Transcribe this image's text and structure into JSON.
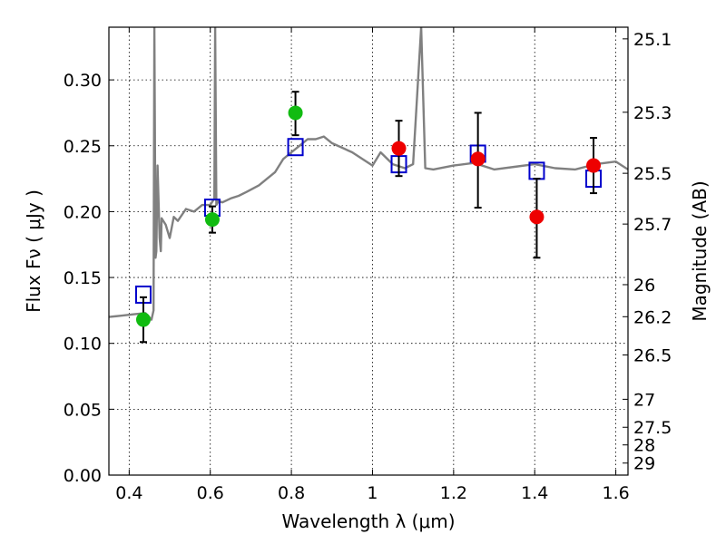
{
  "chart_data": {
    "type": "scatter",
    "title": "",
    "xlabel": "Wavelength  λ (μm)",
    "ylabel": "Flux  Fν  ( μJy )",
    "y2label": "Magnitude (AB)",
    "xlim": [
      0.35,
      1.63
    ],
    "ylim": [
      0.0,
      0.34
    ],
    "grid": true,
    "x_ticks": [
      {
        "value": 0.4,
        "label": "0.4"
      },
      {
        "value": 0.6,
        "label": "0.6"
      },
      {
        "value": 0.8,
        "label": "0.8"
      },
      {
        "value": 1.0,
        "label": "1"
      },
      {
        "value": 1.2,
        "label": "1.2"
      },
      {
        "value": 1.4,
        "label": "1.4"
      },
      {
        "value": 1.6,
        "label": "1.6"
      }
    ],
    "y_ticks": [
      {
        "value": 0.0,
        "label": "0.00"
      },
      {
        "value": 0.05,
        "label": "0.05"
      },
      {
        "value": 0.1,
        "label": "0.10"
      },
      {
        "value": 0.15,
        "label": "0.15"
      },
      {
        "value": 0.2,
        "label": "0.20"
      },
      {
        "value": 0.25,
        "label": "0.25"
      },
      {
        "value": 0.3,
        "label": "0.30"
      }
    ],
    "y2_ticks": [
      {
        "mag": 25.1,
        "label": "25.1"
      },
      {
        "mag": 25.3,
        "label": "25.3"
      },
      {
        "mag": 25.5,
        "label": "25.5"
      },
      {
        "mag": 25.7,
        "label": "25.7"
      },
      {
        "mag": 26,
        "label": "26"
      },
      {
        "mag": 26.2,
        "label": "26.2"
      },
      {
        "mag": 26.5,
        "label": "26.5"
      },
      {
        "mag": 27,
        "label": "27"
      },
      {
        "mag": 27.5,
        "label": "27.5"
      },
      {
        "mag": 28,
        "label": "28"
      },
      {
        "mag": 29,
        "label": "29"
      }
    ],
    "series": [
      {
        "kind": "spectrum-line",
        "color": "#808080",
        "x": [
          0.35,
          0.38,
          0.41,
          0.44,
          0.455,
          0.46,
          0.462,
          0.465,
          0.467,
          0.47,
          0.475,
          0.478,
          0.48,
          0.49,
          0.5,
          0.51,
          0.52,
          0.54,
          0.56,
          0.58,
          0.6,
          0.61,
          0.612,
          0.615,
          0.62,
          0.63,
          0.65,
          0.67,
          0.69,
          0.72,
          0.74,
          0.76,
          0.78,
          0.8,
          0.82,
          0.84,
          0.86,
          0.88,
          0.9,
          0.95,
          1.0,
          1.02,
          1.05,
          1.08,
          1.1,
          1.12,
          1.13,
          1.15,
          1.2,
          1.25,
          1.3,
          1.35,
          1.4,
          1.45,
          1.5,
          1.55,
          1.6,
          1.63
        ],
        "y": [
          0.12,
          0.121,
          0.122,
          0.123,
          0.118,
          0.125,
          0.34,
          0.165,
          0.17,
          0.235,
          0.18,
          0.17,
          0.195,
          0.19,
          0.18,
          0.196,
          0.193,
          0.202,
          0.2,
          0.205,
          0.205,
          0.21,
          0.34,
          0.205,
          0.208,
          0.207,
          0.21,
          0.212,
          0.215,
          0.22,
          0.225,
          0.23,
          0.24,
          0.245,
          0.25,
          0.255,
          0.255,
          0.257,
          0.252,
          0.245,
          0.235,
          0.245,
          0.236,
          0.233,
          0.236,
          0.34,
          0.233,
          0.232,
          0.235,
          0.237,
          0.232,
          0.234,
          0.236,
          0.233,
          0.232,
          0.236,
          0.238,
          0.232
        ]
      },
      {
        "kind": "squares",
        "color": "#0000cc",
        "x": [
          0.435,
          0.605,
          0.81,
          1.065,
          1.26,
          1.405,
          1.545
        ],
        "y": [
          0.137,
          0.203,
          0.249,
          0.236,
          0.244,
          0.231,
          0.225
        ]
      },
      {
        "kind": "green-points",
        "color": "#11bb11",
        "x": [
          0.435,
          0.605,
          0.81
        ],
        "y": [
          0.118,
          0.194,
          0.275
        ],
        "err": [
          [
            0.101,
            0.135
          ],
          [
            0.184,
            0.204
          ],
          [
            0.258,
            0.291
          ]
        ]
      },
      {
        "kind": "red-points",
        "color": "#ee0000",
        "x": [
          1.065,
          1.26,
          1.405,
          1.545
        ],
        "y": [
          0.248,
          0.24,
          0.196,
          0.235
        ],
        "err": [
          [
            0.227,
            0.269
          ],
          [
            0.203,
            0.275
          ],
          [
            0.165,
            0.225
          ],
          [
            0.214,
            0.256
          ]
        ]
      }
    ]
  }
}
